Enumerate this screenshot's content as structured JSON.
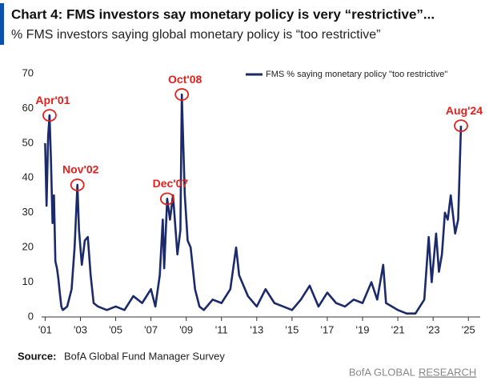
{
  "chart_data": {
    "type": "line",
    "title": "Chart 4: FMS investors say monetary policy is very “restrictive”...",
    "subtitle": "% FMS investors saying global monetary policy is “too restrictive”",
    "source_label": "Source:",
    "source": "BofA Global Fund Manager Survey",
    "footer_brand": "BofA GLOBAL",
    "footer_brand2": "RESEARCH",
    "legend_position": "upper right",
    "xlim": [
      2000.8,
      2025.67
    ],
    "xticks": [
      {
        "value": 2001,
        "label": "'01"
      },
      {
        "value": 2003,
        "label": "'03"
      },
      {
        "value": 2005,
        "label": "'05"
      },
      {
        "value": 2007,
        "label": "'07"
      },
      {
        "value": 2009,
        "label": "'09"
      },
      {
        "value": 2011,
        "label": "'11"
      },
      {
        "value": 2013,
        "label": "'13"
      },
      {
        "value": 2015,
        "label": "'15"
      },
      {
        "value": 2017,
        "label": "'17"
      },
      {
        "value": 2019,
        "label": "'19"
      },
      {
        "value": 2021,
        "label": "'21"
      },
      {
        "value": 2023,
        "label": "'23"
      },
      {
        "value": 2025,
        "label": "'25"
      }
    ],
    "ylim": [
      0,
      70
    ],
    "yticks": [
      0,
      10,
      20,
      30,
      40,
      50,
      60,
      70
    ],
    "x": [
      2001.0,
      2001.08,
      2001.17,
      2001.25,
      2001.33,
      2001.42,
      2001.5,
      2001.58,
      2001.67,
      2001.75,
      2001.83,
      2001.92,
      2002.0,
      2002.25,
      2002.5,
      2002.67,
      2002.83,
      2002.92,
      2003.08,
      2003.25,
      2003.42,
      2003.58,
      2003.75,
      2004.0,
      2004.5,
      2005.0,
      2005.5,
      2006.0,
      2006.5,
      2007.0,
      2007.25,
      2007.5,
      2007.67,
      2007.75,
      2007.92,
      2008.08,
      2008.25,
      2008.5,
      2008.67,
      2008.75,
      2008.83,
      2008.92,
      2009.08,
      2009.25,
      2009.5,
      2009.75,
      2010.0,
      2010.5,
      2011.0,
      2011.5,
      2011.83,
      2012.0,
      2012.5,
      2013.0,
      2013.5,
      2014.0,
      2014.5,
      2015.0,
      2015.5,
      2016.0,
      2016.5,
      2017.0,
      2017.5,
      2018.0,
      2018.5,
      2019.0,
      2019.5,
      2019.83,
      2020.17,
      2020.33,
      2020.67,
      2021.0,
      2021.5,
      2022.0,
      2022.25,
      2022.5,
      2022.75,
      2022.92,
      2023.17,
      2023.33,
      2023.5,
      2023.67,
      2023.83,
      2024.0,
      2024.25,
      2024.42,
      2024.58
    ],
    "series": [
      {
        "name": "FMS % saying monetary policy \"too restrictive\"",
        "color": "#1b2a6b",
        "values": [
          50,
          32,
          52,
          58,
          45,
          27,
          35,
          16,
          14,
          11,
          7,
          3,
          2,
          3,
          8,
          20,
          38,
          25,
          15,
          22,
          23,
          12,
          4,
          3,
          2,
          3,
          2,
          6,
          4,
          8,
          3,
          12,
          28,
          14,
          34,
          28,
          35,
          18,
          25,
          64,
          50,
          35,
          22,
          20,
          8,
          3,
          2,
          5,
          4,
          8,
          20,
          12,
          6,
          3,
          8,
          4,
          3,
          2,
          5,
          9,
          3,
          7,
          4,
          3,
          5,
          4,
          10,
          5,
          15,
          4,
          3,
          2,
          1,
          1,
          3,
          5,
          23,
          10,
          24,
          13,
          18,
          30,
          28,
          35,
          24,
          28,
          55
        ]
      }
    ],
    "annotations": [
      {
        "text": "Apr'01",
        "x": 2001.25,
        "y": 58
      },
      {
        "text": "Nov'02",
        "x": 2002.83,
        "y": 38
      },
      {
        "text": "Dec'07",
        "x": 2007.92,
        "y": 34
      },
      {
        "text": "Oct'08",
        "x": 2008.75,
        "y": 64
      },
      {
        "text": "Aug'24",
        "x": 2024.58,
        "y": 55
      }
    ]
  }
}
